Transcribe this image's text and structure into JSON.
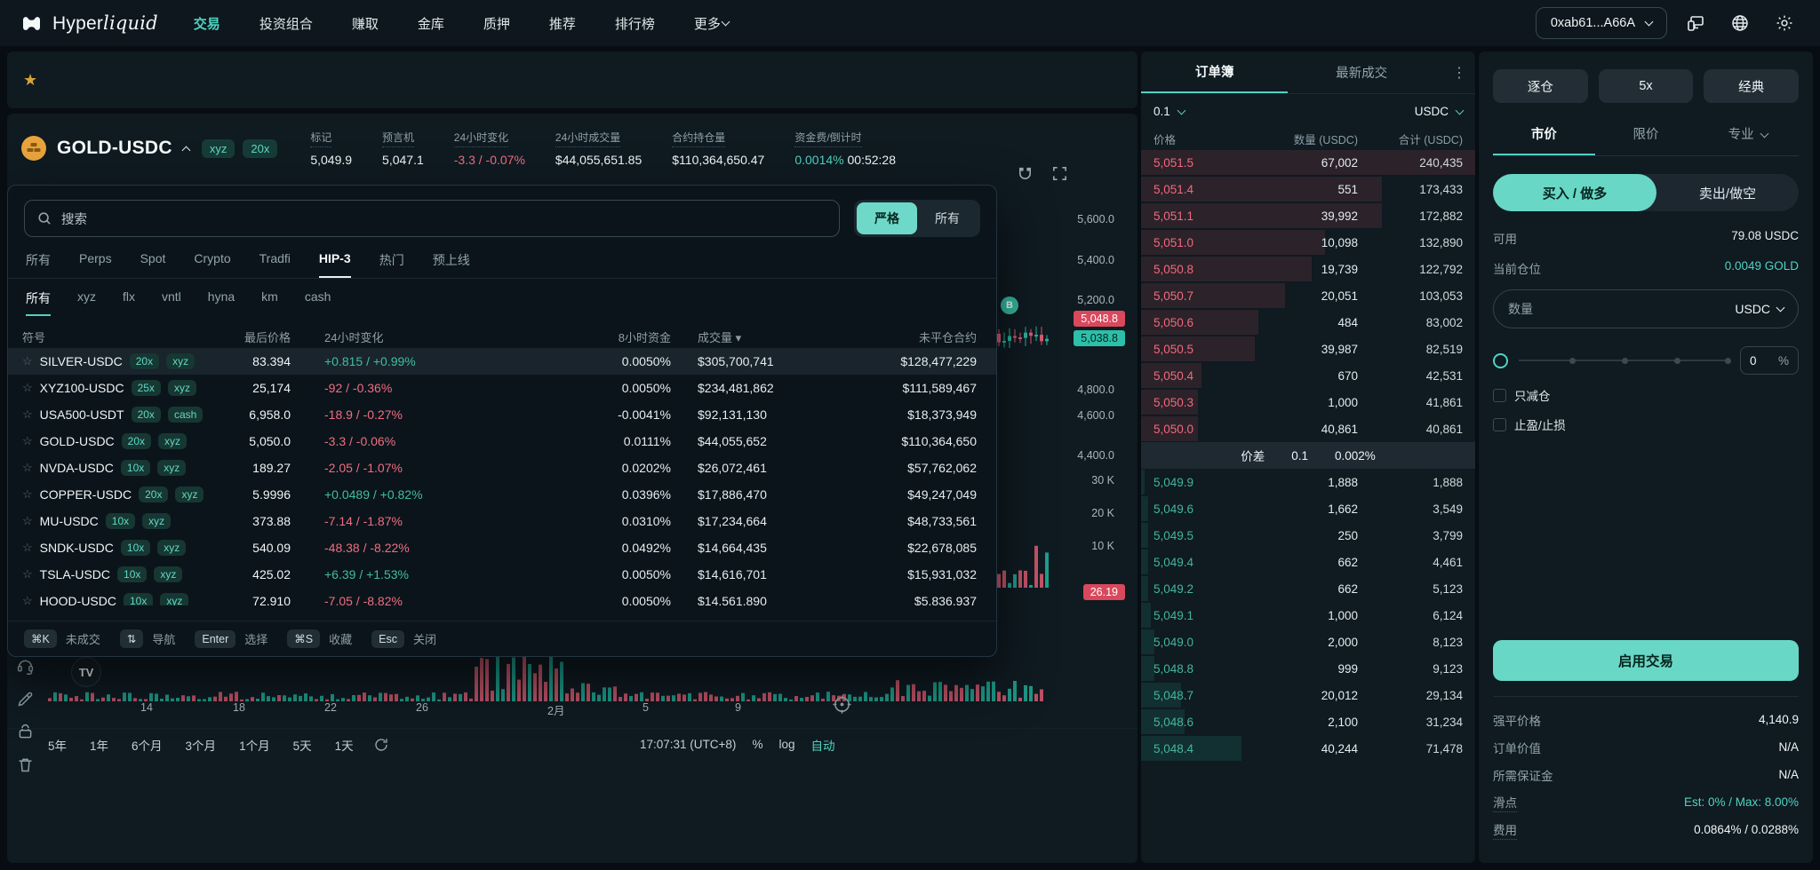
{
  "navbar": {
    "brand_left": "Hyper",
    "brand_right": "liquid",
    "items": [
      {
        "label": "交易",
        "active": true
      },
      {
        "label": "投资组合"
      },
      {
        "label": "赚取"
      },
      {
        "label": "金库"
      },
      {
        "label": "质押"
      },
      {
        "label": "推荐"
      },
      {
        "label": "排行榜"
      },
      {
        "label": "更多",
        "chevron": true
      }
    ],
    "wallet": "0xab61...A66A"
  },
  "pair": {
    "symbol": "GOLD-USDC",
    "badges": [
      "xyz",
      "20x"
    ],
    "stats": [
      {
        "label": "标记",
        "value": "5,049.9"
      },
      {
        "label": "预言机",
        "value": "5,047.1"
      },
      {
        "label": "24小时变化",
        "value": "-3.3 / -0.07%",
        "tone": "down"
      },
      {
        "label": "24小时成交量",
        "value": "$44,055,651.85"
      },
      {
        "label": "合约持仓量",
        "value": "$110,364,650.47"
      },
      {
        "label": "资金费/倒计时",
        "value": "0.0014%",
        "value2": "00:52:28",
        "tone": "up"
      }
    ]
  },
  "chart": {
    "price_labels": [
      "5,600.0",
      "5,400.0",
      "5,200.0",
      "4,800.0",
      "4,600.0",
      "4,400.0",
      "30 K",
      "20 K",
      "10 K"
    ],
    "ask_tag": "5,048.8",
    "bid_tag": "5,038.8",
    "vol_tag": "26.19",
    "marker": "B",
    "time_labels": [
      "14",
      "18",
      "22",
      "26",
      "2月",
      "5",
      "9"
    ],
    "ranges": [
      "5年",
      "1年",
      "6个月",
      "3个月",
      "1个月",
      "5天",
      "1天"
    ],
    "clock": "17:07:31 (UTC+8)",
    "percent": "%",
    "log": "log",
    "auto": "自动"
  },
  "search": {
    "placeholder": "搜索",
    "strict": "严格",
    "all": "所有",
    "tabs": [
      {
        "label": "所有"
      },
      {
        "label": "Perps"
      },
      {
        "label": "Spot"
      },
      {
        "label": "Crypto"
      },
      {
        "label": "Tradfi"
      },
      {
        "label": "HIP-3",
        "active": true
      },
      {
        "label": "热门"
      },
      {
        "label": "预上线"
      }
    ],
    "subtabs": [
      {
        "label": "所有",
        "active": true
      },
      {
        "label": "xyz"
      },
      {
        "label": "flx"
      },
      {
        "label": "vntl"
      },
      {
        "label": "hyna"
      },
      {
        "label": "km"
      },
      {
        "label": "cash"
      }
    ],
    "headers": [
      "符号",
      "最后价格",
      "24小时变化",
      "8小时资金",
      "成交量",
      "未平仓合约"
    ],
    "rows": [
      {
        "symbol": "SILVER-USDC",
        "lev": "20x",
        "tag": "xyz",
        "price": "83.394",
        "change": "+0.815 / +0.99%",
        "dir": "up",
        "funding": "0.0050%",
        "volume": "$305,700,741",
        "oi": "$128,477,229",
        "highlight": true
      },
      {
        "symbol": "XYZ100-USDC",
        "lev": "25x",
        "tag": "xyz",
        "price": "25,174",
        "change": "-92 / -0.36%",
        "dir": "down",
        "funding": "0.0050%",
        "volume": "$234,481,862",
        "oi": "$111,589,467"
      },
      {
        "symbol": "USA500-USDT",
        "lev": "20x",
        "tag": "cash",
        "price": "6,958.0",
        "change": "-18.9 / -0.27%",
        "dir": "down",
        "funding": "-0.0041%",
        "volume": "$92,131,130",
        "oi": "$18,373,949"
      },
      {
        "symbol": "GOLD-USDC",
        "lev": "20x",
        "tag": "xyz",
        "price": "5,050.0",
        "change": "-3.3 / -0.06%",
        "dir": "down",
        "funding": "0.0111%",
        "volume": "$44,055,652",
        "oi": "$110,364,650"
      },
      {
        "symbol": "NVDA-USDC",
        "lev": "10x",
        "tag": "xyz",
        "price": "189.27",
        "change": "-2.05 / -1.07%",
        "dir": "down",
        "funding": "0.0202%",
        "volume": "$26,072,461",
        "oi": "$57,762,062"
      },
      {
        "symbol": "COPPER-USDC",
        "lev": "20x",
        "tag": "xyz",
        "price": "5.9996",
        "change": "+0.0489 / +0.82%",
        "dir": "up",
        "funding": "0.0396%",
        "volume": "$17,886,470",
        "oi": "$49,247,049"
      },
      {
        "symbol": "MU-USDC",
        "lev": "10x",
        "tag": "xyz",
        "price": "373.88",
        "change": "-7.14 / -1.87%",
        "dir": "down",
        "funding": "0.0310%",
        "volume": "$17,234,664",
        "oi": "$48,733,561"
      },
      {
        "symbol": "SNDK-USDC",
        "lev": "10x",
        "tag": "xyz",
        "price": "540.09",
        "change": "-48.38 / -8.22%",
        "dir": "down",
        "funding": "0.0492%",
        "volume": "$14,664,435",
        "oi": "$22,678,085"
      },
      {
        "symbol": "TSLA-USDC",
        "lev": "10x",
        "tag": "xyz",
        "price": "425.02",
        "change": "+6.39 / +1.53%",
        "dir": "up",
        "funding": "0.0050%",
        "volume": "$14,616,701",
        "oi": "$15,931,032"
      },
      {
        "symbol": "HOOD-USDC",
        "lev": "10x",
        "tag": "xyz",
        "price": "72.910",
        "change": "-7.05 / -8.82%",
        "dir": "down",
        "funding": "0.0050%",
        "volume": "$14,561,890",
        "oi": "$5,836,937"
      }
    ],
    "shortcuts": [
      {
        "key": "⌘K",
        "label": "未成交"
      },
      {
        "key": "⇅",
        "label": "导航"
      },
      {
        "key": "Enter",
        "label": "选择"
      },
      {
        "key": "⌘S",
        "label": "收藏"
      },
      {
        "key": "Esc",
        "label": "关闭"
      }
    ]
  },
  "orderbook": {
    "tabs": [
      {
        "label": "订单簿",
        "active": true
      },
      {
        "label": "最新成交"
      }
    ],
    "tick": "0.1",
    "unit": "USDC",
    "headers": [
      "价格",
      "数量 (USDC)",
      "合计 (USDC)"
    ],
    "asks": [
      {
        "p": "5,051.5",
        "s": "67,002",
        "t": "240,435",
        "d": 100
      },
      {
        "p": "5,051.4",
        "s": "551",
        "t": "173,433",
        "d": 72
      },
      {
        "p": "5,051.1",
        "s": "39,992",
        "t": "172,882",
        "d": 72
      },
      {
        "p": "5,051.0",
        "s": "10,098",
        "t": "132,890",
        "d": 55
      },
      {
        "p": "5,050.8",
        "s": "19,739",
        "t": "122,792",
        "d": 51
      },
      {
        "p": "5,050.7",
        "s": "20,051",
        "t": "103,053",
        "d": 43
      },
      {
        "p": "5,050.6",
        "s": "484",
        "t": "83,002",
        "d": 35
      },
      {
        "p": "5,050.5",
        "s": "39,987",
        "t": "82,519",
        "d": 34
      },
      {
        "p": "5,050.4",
        "s": "670",
        "t": "42,531",
        "d": 18
      },
      {
        "p": "5,050.3",
        "s": "1,000",
        "t": "41,861",
        "d": 17
      },
      {
        "p": "5,050.0",
        "s": "40,861",
        "t": "40,861",
        "d": 17
      }
    ],
    "spread": {
      "label": "价差",
      "value": "0.1",
      "pct": "0.002%"
    },
    "bids": [
      {
        "p": "5,049.9",
        "s": "1,888",
        "t": "1,888",
        "d": 1
      },
      {
        "p": "5,049.6",
        "s": "1,662",
        "t": "3,549",
        "d": 2
      },
      {
        "p": "5,049.5",
        "s": "250",
        "t": "3,799",
        "d": 2
      },
      {
        "p": "5,049.4",
        "s": "662",
        "t": "4,461",
        "d": 2
      },
      {
        "p": "5,049.2",
        "s": "662",
        "t": "5,123",
        "d": 2
      },
      {
        "p": "5,049.1",
        "s": "1,000",
        "t": "6,124",
        "d": 3
      },
      {
        "p": "5,049.0",
        "s": "2,000",
        "t": "8,123",
        "d": 4
      },
      {
        "p": "5,048.8",
        "s": "999",
        "t": "9,123",
        "d": 4
      },
      {
        "p": "5,048.7",
        "s": "20,012",
        "t": "29,134",
        "d": 12
      },
      {
        "p": "5,048.6",
        "s": "2,100",
        "t": "31,234",
        "d": 13
      },
      {
        "p": "5,048.4",
        "s": "40,244",
        "t": "71,478",
        "d": 30
      }
    ]
  },
  "trade": {
    "margin_mode": "逐仓",
    "leverage": "5x",
    "style": "经典",
    "tabs": [
      {
        "label": "市价",
        "active": true
      },
      {
        "label": "限价"
      },
      {
        "label": "专业",
        "chevron": true
      }
    ],
    "buy": "买入 / 做多",
    "sell": "卖出/做空",
    "available_label": "可用",
    "available": "79.08 USDC",
    "position_label": "当前仓位",
    "position": "0.0049 GOLD",
    "size_label": "数量",
    "size_unit": "USDC",
    "slider_value": "0",
    "slider_unit": "%",
    "reduce_only": "只减仓",
    "tpsl": "止盈/止损",
    "cta": "启用交易",
    "info": [
      {
        "label": "强平价格",
        "value": "4,140.9"
      },
      {
        "label": "订单价值",
        "value": "N/A"
      },
      {
        "label": "所需保证金",
        "value": "N/A"
      },
      {
        "label": "滑点",
        "value": "Est: 0% / Max: 8.00%",
        "tone": "accent",
        "dotted": true
      },
      {
        "label": "费用",
        "value": "0.0864% / 0.0288%",
        "dotted": true
      }
    ]
  },
  "colors": {
    "accent": "#50d2c1",
    "down": "#ef6e80",
    "up": "#3fbf9f",
    "ask_tag_bg": "#d9485c",
    "bid_tag_bg": "#2cbfa9"
  }
}
